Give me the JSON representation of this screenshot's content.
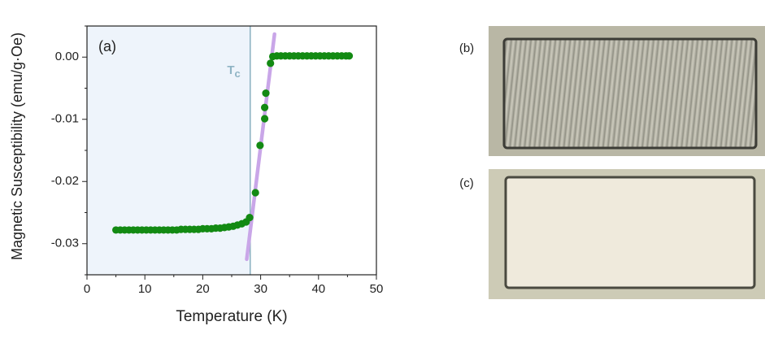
{
  "chart_data": {
    "type": "scatter",
    "panel_label": "(a)",
    "xlabel": "Temperature (K)",
    "ylabel": "Magnetic Susceptibility (emu/g·Oe)",
    "xlim": [
      0,
      50
    ],
    "xticks": [
      0,
      10,
      20,
      30,
      40,
      50
    ],
    "ylim": [
      -0.035,
      0.005
    ],
    "yticks": [
      -0.03,
      -0.02,
      -0.01,
      {
        "value": 0,
        "label": "0.00"
      }
    ],
    "series": [
      {
        "color": "#138a13",
        "x": [
          5,
          5.75,
          6.5,
          7.25,
          8,
          8.75,
          9.5,
          10.25,
          11,
          11.75,
          12.5,
          13.25,
          14,
          14.75,
          15.5,
          16.25,
          17,
          17.75,
          18.5,
          19.25,
          20,
          20.75,
          21.5,
          22.25,
          23,
          23.75,
          24.5,
          25.25,
          26,
          26.75,
          27.5,
          28.1,
          29.1,
          29.9,
          30.7,
          30.7,
          30.9,
          31.7,
          32.1,
          32.8,
          33.5,
          34.25,
          35,
          35.75,
          36.5,
          37.25,
          38,
          38.75,
          39.5,
          40.25,
          41,
          41.75,
          42.5,
          43.25,
          44,
          44.75,
          45.3
        ],
        "values": [
          -0.0278,
          -0.0278,
          -0.0278,
          -0.0278,
          -0.0278,
          -0.0278,
          -0.0278,
          -0.0278,
          -0.0278,
          -0.0278,
          -0.0278,
          -0.0278,
          -0.0278,
          -0.0278,
          -0.0278,
          -0.0277,
          -0.0277,
          -0.0277,
          -0.0277,
          -0.0277,
          -0.0276,
          -0.0276,
          -0.0276,
          -0.0275,
          -0.0275,
          -0.0274,
          -0.0273,
          -0.0272,
          -0.027,
          -0.0268,
          -0.0265,
          -0.0258,
          -0.0218,
          -0.0142,
          -0.0099,
          -0.0081,
          -0.0058,
          -0.001,
          0.0001,
          0.0002,
          0.0002,
          0.0002,
          0.0002,
          0.0002,
          0.0002,
          0.0002,
          0.0002,
          0.0002,
          0.0002,
          0.0002,
          0.0002,
          0.0002,
          0.0002,
          0.0002,
          0.0002,
          0.0002,
          0.0002
        ]
      },
      {
        "type": "line",
        "color": "#c9a6e8",
        "x": [
          27.6,
          32.4
        ],
        "values": [
          -0.0325,
          0.0037
        ]
      }
    ],
    "tc": {
      "text": "T",
      "subscript": "c",
      "x": 28.2,
      "color": "#8fb4c4",
      "shade": "#eef4fb"
    }
  },
  "images": [
    {
      "label": "(b)"
    },
    {
      "label": "(c)"
    }
  ]
}
